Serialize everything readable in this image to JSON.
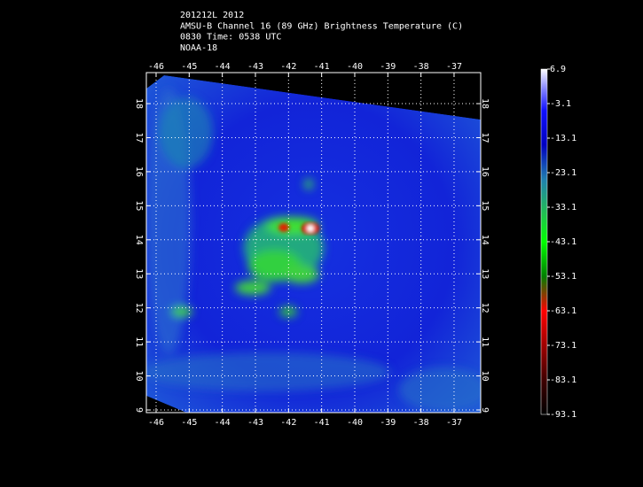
{
  "header": {
    "lines": [
      "201212L 2012",
      "AMSU-B Channel 16 (89 GHz) Brightness Temperature (C)",
      "0830 Time: 0538 UTC",
      "NOAA-18"
    ]
  },
  "map": {
    "lon_ticks": [
      -46,
      -45,
      -44,
      -43,
      -42,
      -41,
      -40,
      -39,
      -38,
      -37
    ],
    "lat_ticks": [
      9,
      10,
      11,
      12,
      13,
      14,
      15,
      16,
      17,
      18
    ]
  },
  "colorbar": {
    "labels": [
      6.9,
      -3.1,
      -13.1,
      -23.1,
      -33.1,
      -43.1,
      -53.1,
      -63.1,
      -73.1,
      -83.1,
      -93.1
    ]
  }
}
